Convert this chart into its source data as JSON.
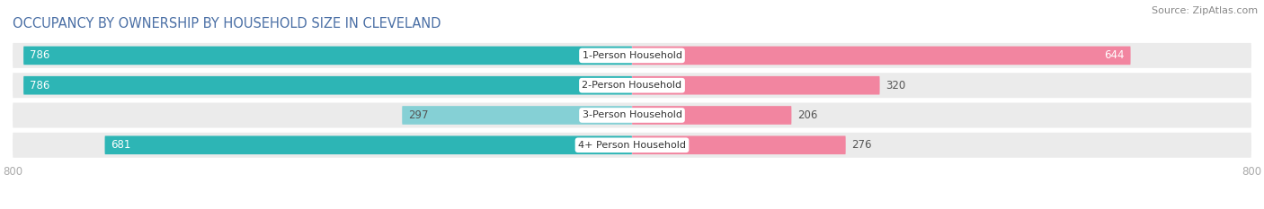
{
  "title": "OCCUPANCY BY OWNERSHIP BY HOUSEHOLD SIZE IN CLEVELAND",
  "source": "Source: ZipAtlas.com",
  "categories": [
    "1-Person Household",
    "2-Person Household",
    "3-Person Household",
    "4+ Person Household"
  ],
  "owner_values": [
    786,
    786,
    297,
    681
  ],
  "renter_values": [
    644,
    320,
    206,
    276
  ],
  "owner_color": "#2db5b5",
  "owner_color_light": "#85d0d5",
  "renter_color": "#f285a0",
  "row_bg_color": "#ebebeb",
  "axis_max": 800,
  "title_fontsize": 10.5,
  "source_fontsize": 8,
  "tick_fontsize": 8.5,
  "bar_label_fontsize": 8.5,
  "category_fontsize": 8,
  "legend_fontsize": 8.5,
  "bar_height": 0.62,
  "background_color": "#ffffff"
}
